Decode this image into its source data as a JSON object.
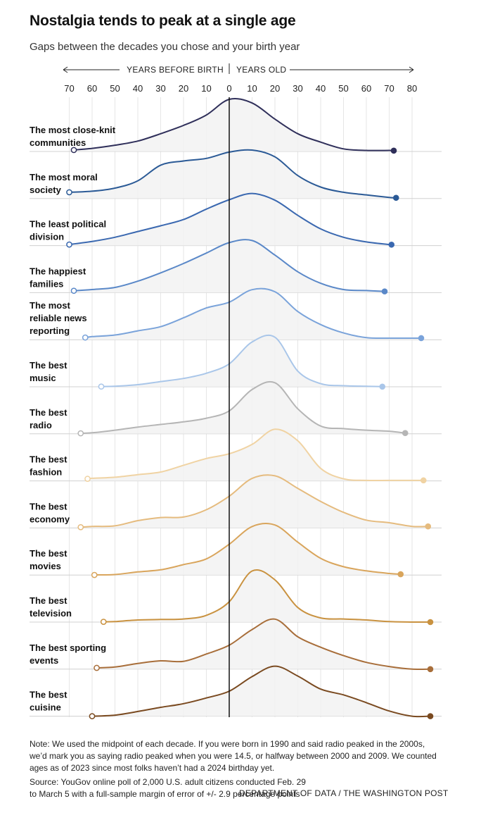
{
  "title": "Nostalgia tends to peak at a single age",
  "subtitle": "Gaps between the decades you chose and your birth year",
  "note": "Note: We used the midpoint of each decade. If you were born in 1990 and said radio peaked in the 2000s, we’d mark you as saying radio peaked when you were 14.5, or halfway between 2000 and 2009. We counted ages as of 2023 since most folks haven’t had a 2024 birthday yet.",
  "source": "Source: YouGov online poll of 2,000 U.S. adult citizens conducted Feb. 29 to March 5 with a full-sample margin of error of +/- 2.9 percentage points",
  "credit": "DEPARTMENT OF DATA / THE WASHINGTON POST",
  "chart_data": {
    "type": "area",
    "subtype": "ridgeline density",
    "axis": {
      "left_label": "YEARS BEFORE BIRTH",
      "right_label": "YEARS OLD",
      "ticks": [
        -70,
        -60,
        -50,
        -40,
        -30,
        -20,
        -10,
        0,
        10,
        20,
        30,
        40,
        50,
        60,
        70,
        80
      ],
      "tick_labels": [
        "70",
        "60",
        "50",
        "40",
        "30",
        "20",
        "10",
        "0",
        "10",
        "20",
        "30",
        "40",
        "50",
        "60",
        "70",
        "80"
      ],
      "xlim": [
        -72,
        82
      ],
      "grid": true
    },
    "x": [
      -70,
      -60,
      -50,
      -40,
      -30,
      -20,
      -10,
      0,
      10,
      20,
      30,
      40,
      50,
      60,
      70,
      80
    ],
    "series": [
      {
        "name": "The most close-knit communities",
        "color": "#2f2f5a",
        "start": -68,
        "end": 72,
        "density": [
          0.02,
          0.06,
          0.12,
          0.2,
          0.34,
          0.5,
          0.7,
          1.0,
          0.93,
          0.62,
          0.34,
          0.18,
          0.05,
          0.02,
          0.02,
          0.0
        ]
      },
      {
        "name": "The most moral society",
        "color": "#2b5a96",
        "start": -70,
        "end": 73,
        "density": [
          0.12,
          0.14,
          0.2,
          0.34,
          0.64,
          0.72,
          0.77,
          0.89,
          0.93,
          0.8,
          0.44,
          0.22,
          0.12,
          0.07,
          0.02,
          0.0
        ]
      },
      {
        "name": "The least political division",
        "color": "#3a68b0",
        "start": -70,
        "end": 71,
        "density": [
          0.02,
          0.08,
          0.16,
          0.27,
          0.38,
          0.5,
          0.7,
          0.88,
          1.0,
          0.87,
          0.58,
          0.32,
          0.16,
          0.07,
          0.02,
          0.0
        ]
      },
      {
        "name": "The happiest families",
        "color": "#5a88c8",
        "start": -68,
        "end": 68,
        "density": [
          0.03,
          0.06,
          0.1,
          0.22,
          0.38,
          0.56,
          0.76,
          0.96,
          1.0,
          0.72,
          0.4,
          0.18,
          0.06,
          0.04,
          0.02,
          0.0
        ]
      },
      {
        "name": "The most reliable news reporting",
        "color": "#7aa3da",
        "start": -63,
        "end": 84,
        "density": [
          0.0,
          0.06,
          0.09,
          0.17,
          0.25,
          0.42,
          0.61,
          0.72,
          0.96,
          0.92,
          0.54,
          0.29,
          0.13,
          0.04,
          0.03,
          0.03
        ]
      },
      {
        "name": "The best music",
        "color": "#a9c6e9",
        "start": -56,
        "end": 67,
        "density": [
          0.0,
          0.0,
          0.01,
          0.04,
          0.1,
          0.16,
          0.26,
          0.44,
          0.86,
          0.95,
          0.3,
          0.06,
          0.02,
          0.01,
          0.0,
          0.0
        ]
      },
      {
        "name": "The best radio",
        "color": "#b5b5b5",
        "start": -65,
        "end": 77,
        "density": [
          0.0,
          0.02,
          0.07,
          0.13,
          0.18,
          0.23,
          0.3,
          0.44,
          0.85,
          0.98,
          0.48,
          0.15,
          0.1,
          0.07,
          0.05,
          0.0
        ]
      },
      {
        "name": "The best fashion",
        "color": "#f0d3a3",
        "start": -62,
        "end": 85,
        "density": [
          0.0,
          0.05,
          0.07,
          0.12,
          0.17,
          0.3,
          0.43,
          0.52,
          0.7,
          0.99,
          0.77,
          0.24,
          0.04,
          0.01,
          0.01,
          0.01
        ]
      },
      {
        "name": "The best economy",
        "color": "#e5bb7e",
        "start": -65,
        "end": 87,
        "density": [
          0.0,
          0.03,
          0.04,
          0.14,
          0.2,
          0.21,
          0.35,
          0.61,
          0.95,
          1.0,
          0.76,
          0.51,
          0.3,
          0.15,
          0.1,
          0.03
        ]
      },
      {
        "name": "The best movies",
        "color": "#d9a55c",
        "start": -59,
        "end": 75,
        "density": [
          0.0,
          0.0,
          0.01,
          0.06,
          0.1,
          0.2,
          0.31,
          0.59,
          0.93,
          0.96,
          0.63,
          0.32,
          0.16,
          0.08,
          0.03,
          0.0
        ]
      },
      {
        "name": "The best television",
        "color": "#c99240",
        "start": -55,
        "end": 89,
        "density": [
          0.0,
          0.0,
          0.01,
          0.04,
          0.05,
          0.06,
          0.13,
          0.39,
          0.98,
          0.81,
          0.28,
          0.08,
          0.06,
          0.04,
          0.01,
          0.0
        ]
      },
      {
        "name": "The best sporting events",
        "color": "#a86e3a",
        "start": -58,
        "end": 89,
        "density": [
          0.0,
          0.02,
          0.04,
          0.11,
          0.16,
          0.15,
          0.29,
          0.46,
          0.76,
          0.96,
          0.62,
          0.42,
          0.26,
          0.13,
          0.05,
          0.0
        ]
      },
      {
        "name": "The best cuisine",
        "color": "#7a4a20",
        "start": -60,
        "end": 89,
        "density": [
          0.0,
          0.0,
          0.02,
          0.09,
          0.17,
          0.24,
          0.35,
          0.48,
          0.76,
          0.96,
          0.77,
          0.52,
          0.41,
          0.26,
          0.1,
          0.0
        ]
      }
    ]
  },
  "rows": [
    {
      "lines": [
        "The most close-knit",
        "communities"
      ]
    },
    {
      "lines": [
        "The most moral",
        "society"
      ]
    },
    {
      "lines": [
        "The least political",
        "division"
      ]
    },
    {
      "lines": [
        "The happiest",
        "families"
      ]
    },
    {
      "lines": [
        "The most",
        "reliable news",
        "reporting"
      ]
    },
    {
      "lines": [
        "The best",
        "music"
      ]
    },
    {
      "lines": [
        "The best",
        "radio"
      ]
    },
    {
      "lines": [
        "The best",
        "fashion"
      ]
    },
    {
      "lines": [
        "The best",
        "economy"
      ]
    },
    {
      "lines": [
        "The best",
        "movies"
      ]
    },
    {
      "lines": [
        "The best",
        "television"
      ]
    },
    {
      "lines": [
        "The best sporting",
        "events"
      ]
    },
    {
      "lines": [
        "The best",
        "cuisine"
      ]
    }
  ]
}
